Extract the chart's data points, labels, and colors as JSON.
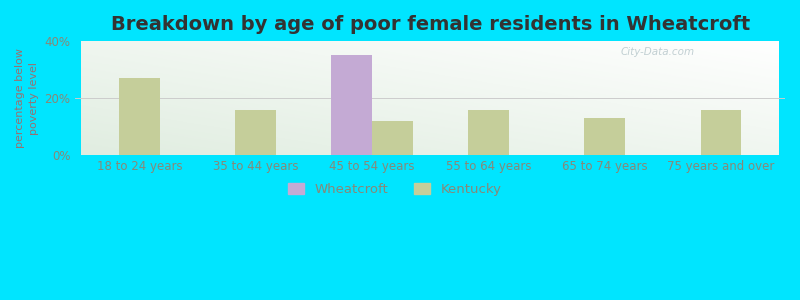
{
  "title": "Breakdown by age of poor female residents in Wheatcroft",
  "ylabel": "percentage below\npoverty level",
  "categories": [
    "18 to 24 years",
    "35 to 44 years",
    "45 to 54 years",
    "55 to 64 years",
    "65 to 74 years",
    "75 years and over"
  ],
  "wheatcroft": [
    0,
    0,
    35,
    0,
    0,
    0
  ],
  "kentucky": [
    27,
    16,
    12,
    16,
    13,
    16
  ],
  "wheatcroft_color": "#c4aad4",
  "kentucky_color": "#c5ce9a",
  "background_color_fig": "#00e5ff",
  "ylim": [
    0,
    40
  ],
  "yticks": [
    0,
    20,
    40
  ],
  "ytick_labels": [
    "0%",
    "20%",
    "40%"
  ],
  "bar_width": 0.35,
  "title_fontsize": 14,
  "axis_label_fontsize": 8,
  "tick_fontsize": 8.5,
  "legend_labels": [
    "Wheatcroft",
    "Kentucky"
  ],
  "text_color": "#888877",
  "title_color": "#333333",
  "ylabel_color": "#9a7070",
  "watermark": "City-Data.com"
}
